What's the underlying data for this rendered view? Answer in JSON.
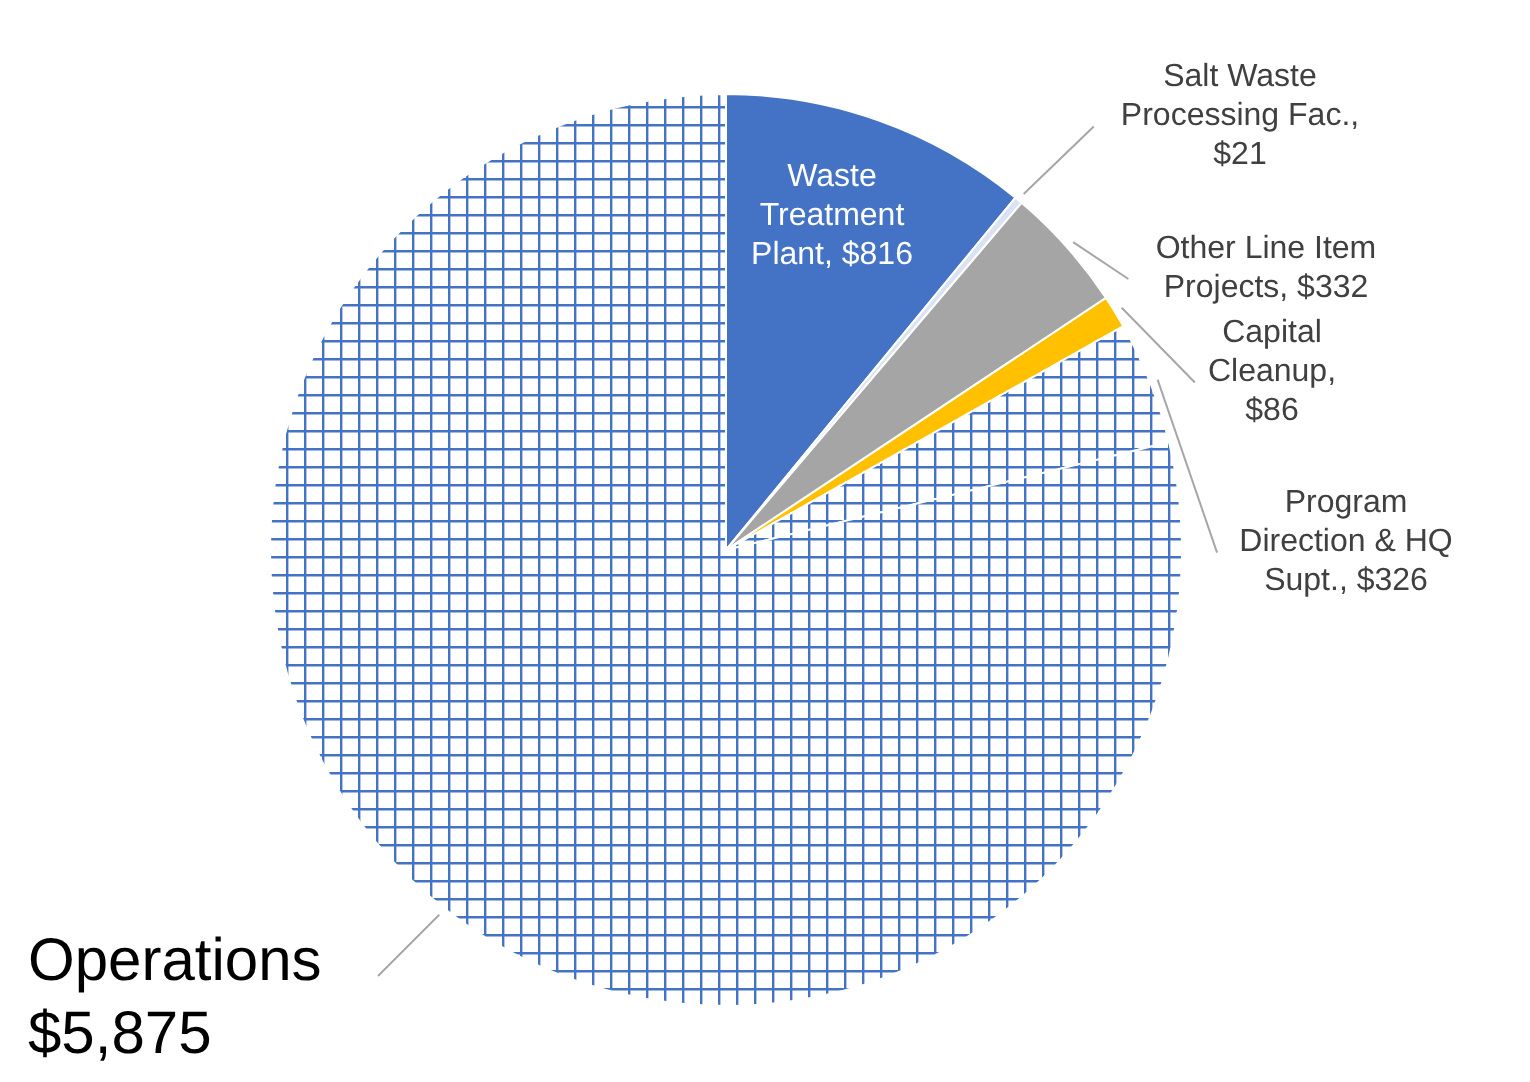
{
  "chart_data": {
    "type": "pie",
    "categories": [
      "Waste Treatment Plant, $816",
      "Salt Waste Processing Fac., $21",
      "Other Line Item Projects, $332",
      "Capital Cleanup, $86",
      "Program Direction & HQ Supt., $326",
      "Operations $5,875"
    ],
    "values": [
      816,
      21,
      332,
      86,
      326,
      5875
    ],
    "colors": [
      "#4472c4",
      "#dae3f3",
      "#a5a5a5",
      "#ffc000",
      "#4472c4",
      "#4472c4"
    ],
    "legend": false
  }
}
